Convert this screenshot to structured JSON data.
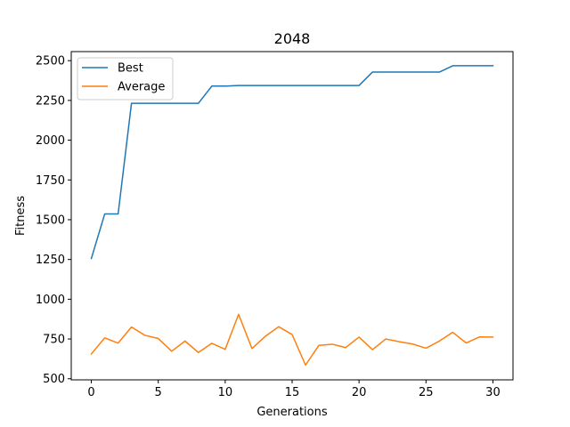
{
  "chart_data": {
    "type": "line",
    "title": "2048",
    "xlabel": "Generations",
    "ylabel": "Fitness",
    "xlim": [
      -1.5,
      31.5
    ],
    "ylim": [
      493,
      2557
    ],
    "xticks": [
      0,
      5,
      10,
      15,
      20,
      25,
      30
    ],
    "yticks": [
      500,
      750,
      1000,
      1250,
      1500,
      1750,
      2000,
      2250,
      2500
    ],
    "grid": false,
    "legend_position": "top-left",
    "x": [
      0,
      1,
      2,
      3,
      4,
      5,
      6,
      7,
      8,
      9,
      10,
      11,
      12,
      13,
      14,
      15,
      16,
      17,
      18,
      19,
      20,
      21,
      22,
      23,
      24,
      25,
      26,
      27,
      28,
      29,
      30
    ],
    "series": [
      {
        "name": "Best",
        "color": "#1f77b4",
        "values": [
          1256,
          1536,
          1536,
          2232,
          2232,
          2232,
          2232,
          2232,
          2232,
          2340,
          2340,
          2344,
          2344,
          2344,
          2344,
          2344,
          2344,
          2344,
          2344,
          2344,
          2344,
          2428,
          2428,
          2428,
          2428,
          2428,
          2428,
          2468,
          2468,
          2468,
          2468
        ]
      },
      {
        "name": "Average",
        "color": "#ff7f0e",
        "values": [
          656,
          757,
          724,
          825,
          773,
          753,
          673,
          737,
          665,
          723,
          685,
          905,
          690,
          767,
          827,
          778,
          586,
          710,
          717,
          696,
          762,
          683,
          750,
          733,
          718,
          692,
          737,
          792,
          725,
          763,
          762
        ]
      }
    ]
  }
}
